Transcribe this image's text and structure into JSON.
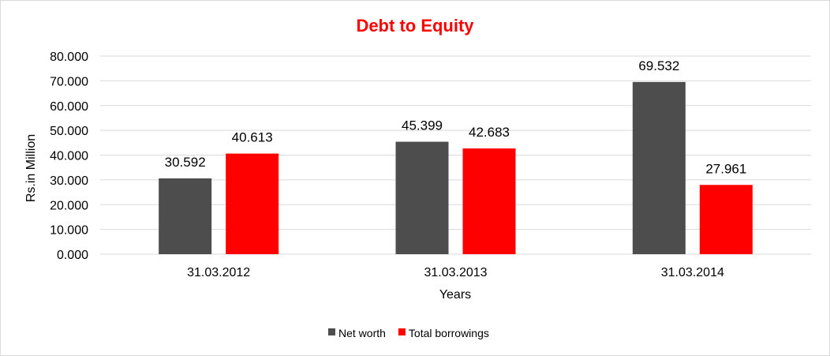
{
  "chart_data": {
    "type": "bar",
    "title": "Debt to Equity",
    "xlabel": "Years",
    "ylabel": "Rs.in Million",
    "categories": [
      "31.03.2012",
      "31.03.2013",
      "31.03.2014"
    ],
    "series": [
      {
        "name": "Net worth",
        "values": [
          30.592,
          45.399,
          69.532
        ],
        "color": "#4d4d4d"
      },
      {
        "name": "Total borrowings",
        "values": [
          40.613,
          42.683,
          27.961
        ],
        "color": "#ff0000"
      }
    ],
    "ylim": [
      0,
      80
    ],
    "yticks": [
      0,
      10,
      20,
      30,
      40,
      50,
      60,
      70,
      80
    ],
    "ytick_labels": [
      "0.000",
      "10.000",
      "20.000",
      "30.000",
      "40.000",
      "50.000",
      "60.000",
      "70.000",
      "80.000"
    ],
    "value_labels": [
      [
        "30.592",
        "45.399",
        "69.532"
      ],
      [
        "40.613",
        "42.683",
        "27.961"
      ]
    ],
    "grid": true,
    "legend": "bottom",
    "gridline_color": "#d9d9d9"
  }
}
